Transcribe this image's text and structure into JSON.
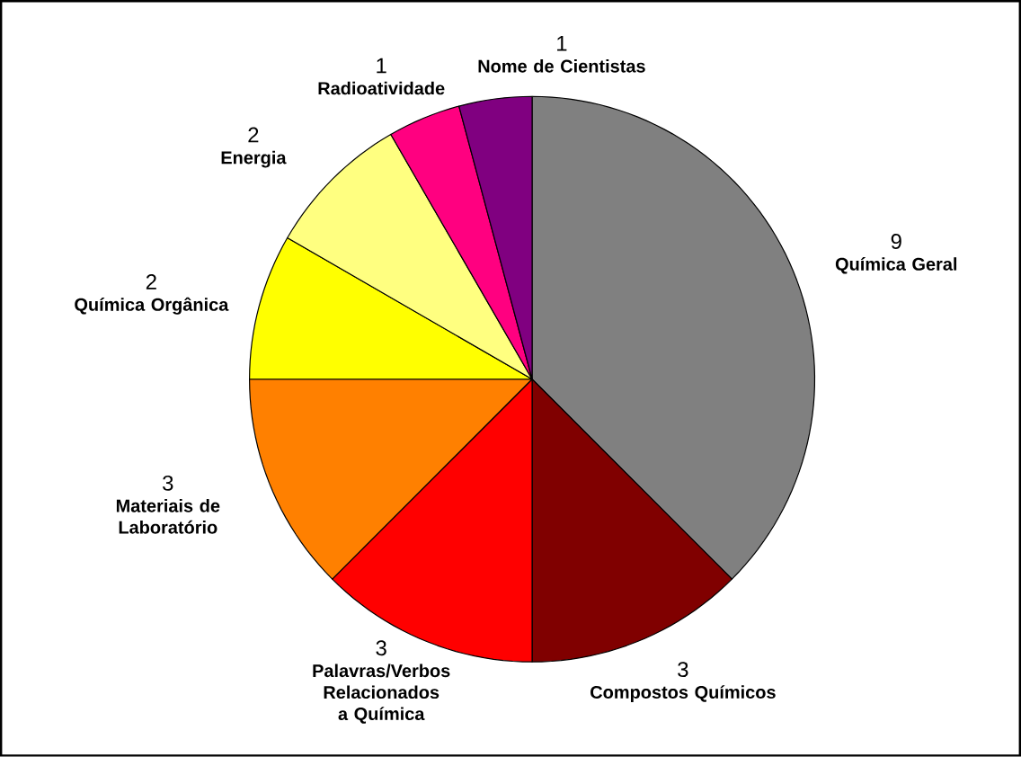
{
  "chart_data": {
    "type": "pie",
    "categories": [
      "Química Geral",
      "Compostos Químicos",
      "Palavras/Verbos Relacionados a Química",
      "Materiais de Laboratório",
      "Química Orgânica",
      "Energia",
      "Radioatividade",
      "Nome de Cientistas"
    ],
    "values": [
      9,
      3,
      3,
      3,
      2,
      2,
      1,
      1
    ],
    "colors": [
      "#808080",
      "#800000",
      "#ff0000",
      "#ff8000",
      "#ffff00",
      "#ffff80",
      "#ff0080",
      "#800080"
    ],
    "data_labels": true
  }
}
